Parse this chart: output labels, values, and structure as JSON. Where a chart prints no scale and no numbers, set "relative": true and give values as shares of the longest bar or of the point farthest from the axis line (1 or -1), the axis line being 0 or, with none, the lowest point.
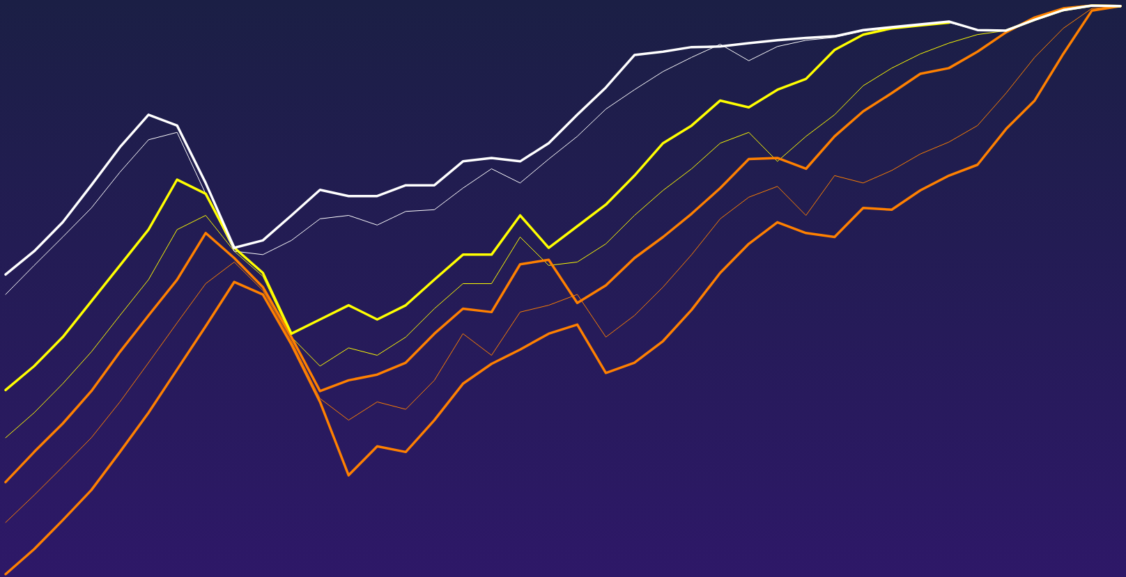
{
  "chart_data": {
    "type": "line",
    "relative": true,
    "categories": [
      null,
      null,
      null,
      null,
      null,
      null,
      null,
      null,
      null,
      null,
      null,
      null,
      null,
      null,
      null,
      null,
      null,
      null,
      null,
      null,
      null,
      null,
      null,
      null,
      null,
      null,
      null,
      null,
      null,
      null,
      null,
      null,
      null,
      null,
      null,
      null,
      null,
      null,
      null,
      null
    ],
    "series": [
      {
        "color": "#ff8000",
        "values": [
          0,
          0.044,
          0.095,
          0.148,
          0.215,
          0.284,
          0.36,
          0.436,
          0.514,
          0.492,
          0.404,
          0.303,
          0.174,
          0.225,
          0.215,
          0.271,
          0.335,
          0.37,
          0.395,
          0.423,
          0.439,
          0.354,
          0.372,
          0.41,
          0.465,
          0.53,
          0.581,
          0.619,
          0.6,
          0.593,
          0.644,
          0.641,
          0.675,
          0.701,
          0.72,
          0.783,
          0.833,
          0.915,
          0.991,
          0.999
        ]
      },
      {
        "color": "#ff8000",
        "values": [
          0.162,
          0.215,
          0.265,
          0.322,
          0.391,
          0.455,
          0.518,
          0.6,
          0.556,
          0.505,
          0.417,
          0.322,
          0.341,
          0.351,
          0.372,
          0.423,
          0.467,
          0.461,
          0.545,
          0.553,
          0.477,
          0.508,
          0.556,
          0.593,
          0.634,
          0.679,
          0.73,
          0.732,
          0.713,
          0.77,
          0.814,
          0.846,
          0.88,
          0.89,
          0.919,
          0.953,
          0.979,
          0.995,
          1,
          0.999
        ]
      },
      {
        "color": "#ffff00",
        "values": [
          0.324,
          0.366,
          0.417,
          0.48,
          0.543,
          0.606,
          0.694,
          0.669,
          0.574,
          0.53,
          0.423,
          0.448,
          0.473,
          0.448,
          0.473,
          0.518,
          0.562,
          0.562,
          0.631,
          0.574,
          0.612,
          0.65,
          0.701,
          0.758,
          0.789,
          0.833,
          0.821,
          0.852,
          0.871,
          0.922,
          0.949,
          0.96,
          0.965,
          0.97,
          null,
          0.956,
          0.975,
          0.992,
          1,
          0.999
        ]
      },
      {
        "color": "#ffffff",
        "values": [
          0.527,
          0.568,
          0.619,
          0.684,
          0.751,
          0.808,
          0.789,
          0.688,
          0.574,
          0.587,
          0.631,
          0.676,
          0.665,
          0.665,
          0.684,
          0.684,
          0.726,
          0.732,
          0.726,
          0.758,
          0.808,
          0.856,
          0.913,
          0.919,
          0.927,
          0.928,
          0.934,
          0.939,
          0.943,
          0.946,
          0.957,
          0.962,
          0.967,
          0.972,
          0.957,
          0.956,
          0.975,
          0.992,
          1,
          0.999
        ]
      },
      {
        "color": "#ff8000",
        "values": [
          0.091,
          0.139,
          0.189,
          0.24,
          0.303,
          0.372,
          0.442,
          0.511,
          0.549,
          0.499,
          0.41,
          0.309,
          0.271,
          0.303,
          0.29,
          0.341,
          0.423,
          0.385,
          0.461,
          0.473,
          0.492,
          0.417,
          0.455,
          0.505,
          0.562,
          0.625,
          0.663,
          0.682,
          0.631,
          0.701,
          0.688,
          0.71,
          0.739,
          0.76,
          0.789,
          0.846,
          0.909,
          0.96,
          0.995,
          0.999
        ]
      },
      {
        "color": "#ffff00",
        "values": [
          0.24,
          0.284,
          0.335,
          0.391,
          0.455,
          0.518,
          0.606,
          0.631,
          0.568,
          0.524,
          0.417,
          0.366,
          0.398,
          0.385,
          0.417,
          0.467,
          0.511,
          0.511,
          0.593,
          0.543,
          0.549,
          0.581,
          0.631,
          0.675,
          0.713,
          0.758,
          0.777,
          0.726,
          0.77,
          0.808,
          0.859,
          0.89,
          0.915,
          0.934,
          0.949,
          0.956,
          0.975,
          0.992,
          1,
          0.999
        ]
      },
      {
        "color": "#ffffff",
        "values": [
          0.492,
          0.543,
          0.593,
          0.644,
          0.707,
          0.764,
          0.777,
          0.669,
          0.568,
          0.562,
          0.587,
          0.625,
          0.631,
          0.614,
          0.638,
          0.641,
          0.679,
          0.713,
          0.688,
          0.73,
          0.77,
          0.818,
          0.852,
          0.884,
          0.909,
          0.932,
          0.903,
          0.928,
          0.939,
          0.944,
          0.955,
          0.96,
          0.965,
          0.97,
          0.957,
          0.956,
          0.975,
          0.992,
          1,
          0.999
        ]
      }
    ]
  }
}
